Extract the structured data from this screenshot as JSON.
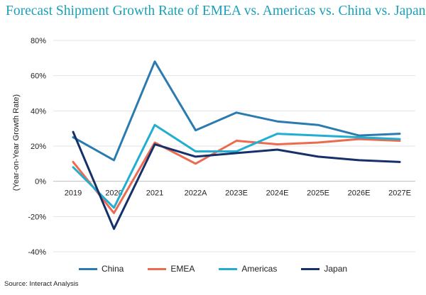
{
  "title": "Forecast Shipment Growth Rate of EMEA vs. Americas vs. China vs. Japan",
  "source": "Source: Interact Analysis",
  "chart_data": {
    "type": "line",
    "title": "Forecast Shipment Growth Rate of EMEA vs. Americas vs. China vs. Japan",
    "xlabel": "",
    "ylabel": "(Year-on-Year Growth Rate)",
    "ylim": [
      -40,
      80
    ],
    "yticks": [
      "-40%",
      "-20%",
      "0%",
      "20%",
      "40%",
      "60%",
      "80%"
    ],
    "ytick_values": [
      -40,
      -20,
      0,
      20,
      40,
      60,
      80
    ],
    "categories": [
      "2019",
      "2020",
      "2021",
      "2022A",
      "2023E",
      "2024E",
      "2025E",
      "2026E",
      "2027E"
    ],
    "grid": "horizontal",
    "legend": "bottom",
    "series": [
      {
        "name": "China",
        "color": "#2b7bb0",
        "values": [
          25,
          12,
          68,
          29,
          39,
          34,
          32,
          26,
          27
        ]
      },
      {
        "name": "EMEA",
        "color": "#ec6a4f",
        "values": [
          11,
          -18,
          22,
          10,
          23,
          21,
          22,
          24,
          23
        ]
      },
      {
        "name": "Americas",
        "color": "#22aed0",
        "values": [
          8,
          -15,
          32,
          17,
          17,
          27,
          26,
          25,
          24
        ]
      },
      {
        "name": "Japan",
        "color": "#16306a",
        "values": [
          28,
          -27,
          21,
          14,
          16,
          18,
          14,
          12,
          11
        ]
      }
    ]
  }
}
